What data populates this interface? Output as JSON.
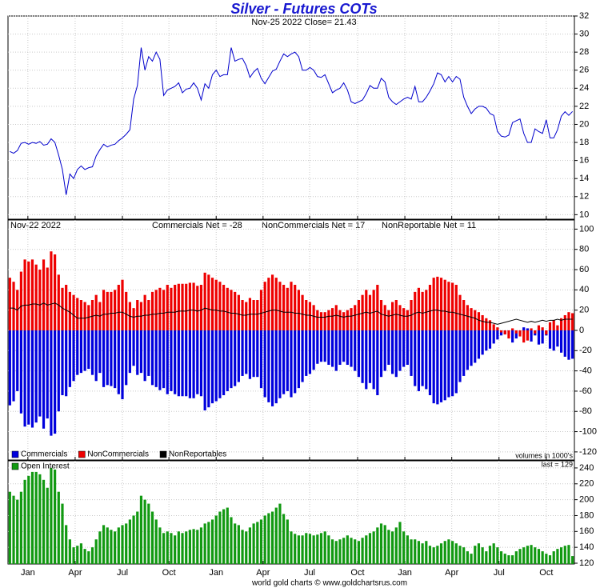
{
  "chart_data": [
    {
      "type": "line",
      "title": "Silver - Futures COTs",
      "subtitle": "Nov-25  2022   Close= 21.43",
      "xlim": [
        -0.5,
        150.5
      ],
      "ylim": [
        9.5,
        32
      ],
      "yticks": [
        10,
        12,
        14,
        16,
        18,
        20,
        22,
        24,
        26,
        28,
        30,
        32
      ],
      "grid": true,
      "color": "#0000cc",
      "values": [
        17.0,
        16.8,
        17.1,
        17.9,
        18.0,
        17.8,
        18.0,
        17.9,
        18.1,
        17.7,
        17.8,
        18.4,
        18.0,
        16.6,
        15.0,
        12.2,
        14.5,
        14.0,
        15.0,
        15.4,
        15.0,
        15.2,
        15.3,
        16.5,
        17.2,
        17.8,
        17.5,
        17.7,
        17.8,
        18.2,
        18.5,
        18.9,
        19.4,
        22.8,
        24.3,
        28.5,
        26.0,
        27.5,
        27.0,
        28.0,
        27.2,
        23.2,
        23.8,
        24.0,
        24.2,
        24.6,
        23.5,
        23.9,
        24.0,
        24.6,
        24.0,
        22.7,
        24.5,
        24.0,
        25.5,
        26.0,
        25.3,
        25.5,
        25.5,
        28.5,
        27.0,
        27.2,
        27.3,
        26.5,
        25.2,
        25.8,
        26.2,
        25.1,
        24.5,
        25.2,
        25.9,
        26.1,
        27.0,
        27.8,
        27.5,
        27.8,
        28.0,
        27.5,
        26.0,
        26.0,
        26.3,
        26.0,
        25.3,
        25.2,
        25.5,
        24.5,
        23.5,
        23.8,
        24.0,
        24.6,
        23.8,
        22.5,
        22.3,
        22.5,
        22.7,
        23.4,
        24.3,
        24.0,
        24.0,
        25.1,
        24.7,
        23.0,
        22.5,
        22.2,
        22.5,
        22.8,
        23.0,
        22.8,
        24.2,
        22.5,
        22.5,
        23.0,
        23.7,
        24.5,
        25.7,
        25.5,
        24.7,
        25.3,
        24.7,
        25.3,
        25.0,
        23.0,
        22.0,
        21.2,
        21.7,
        22.0,
        22.0,
        21.8,
        21.2,
        21.0,
        19.2,
        18.7,
        18.6,
        18.8,
        20.2,
        20.4,
        20.6,
        19.0,
        18.0,
        18.0,
        19.5,
        19.2,
        19.0,
        20.5,
        18.5,
        18.5,
        19.4,
        20.9,
        21.4,
        21.0,
        21.43
      ]
    },
    {
      "type": "bar",
      "date": "Nov-22  2022",
      "annotations": [
        "Commercials Net = -28",
        "NonCommercials Net = 17",
        "NonReportable Net = 11"
      ],
      "xlim": [
        -0.5,
        150.5
      ],
      "ylim": [
        -128,
        109
      ],
      "yticks": [
        -120,
        -100,
        -80,
        -60,
        -40,
        -20,
        0,
        20,
        40,
        60,
        80,
        100
      ],
      "grid": true,
      "series": [
        {
          "name": "Commercials",
          "color": "#0000dd",
          "values": [
            -74,
            -70,
            -60,
            -82,
            -95,
            -93,
            -96,
            -91,
            -85,
            -97,
            -87,
            -104,
            -102,
            -80,
            -64,
            -65,
            -56,
            -50,
            -44,
            -42,
            -40,
            -38,
            -44,
            -50,
            -42,
            -56,
            -54,
            -55,
            -57,
            -63,
            -68,
            -54,
            -42,
            -35,
            -44,
            -42,
            -50,
            -45,
            -54,
            -56,
            -59,
            -57,
            -63,
            -60,
            -63,
            -65,
            -65,
            -65,
            -67,
            -67,
            -63,
            -65,
            -79,
            -76,
            -72,
            -70,
            -67,
            -64,
            -60,
            -57,
            -55,
            -51,
            -45,
            -43,
            -48,
            -46,
            -46,
            -57,
            -66,
            -71,
            -75,
            -72,
            -67,
            -63,
            -60,
            -66,
            -62,
            -57,
            -51,
            -45,
            -43,
            -39,
            -33,
            -31,
            -31,
            -34,
            -36,
            -40,
            -34,
            -31,
            -34,
            -36,
            -40,
            -46,
            -52,
            -58,
            -52,
            -58,
            -64,
            -46,
            -40,
            -34,
            -43,
            -46,
            -40,
            -36,
            -34,
            -45,
            -55,
            -60,
            -55,
            -58,
            -64,
            -72,
            -73,
            -71,
            -69,
            -66,
            -65,
            -62,
            -51,
            -45,
            -39,
            -35,
            -32,
            -28,
            -24,
            -20,
            -18,
            -13,
            -9,
            -5,
            -4,
            -1,
            -12,
            -8,
            -4,
            3,
            2,
            -11,
            -5,
            -14,
            -13,
            -5,
            -18,
            -20,
            -16,
            -22,
            -26,
            -29,
            -28
          ]
        },
        {
          "name": "NonCommercials",
          "color": "#ee0000",
          "values": [
            52,
            48,
            40,
            58,
            70,
            68,
            70,
            65,
            60,
            70,
            62,
            78,
            75,
            55,
            42,
            45,
            38,
            35,
            32,
            30,
            28,
            25,
            30,
            35,
            28,
            40,
            38,
            38,
            40,
            45,
            50,
            38,
            28,
            22,
            30,
            28,
            35,
            30,
            38,
            40,
            42,
            40,
            45,
            42,
            45,
            46,
            46,
            46,
            47,
            47,
            44,
            45,
            57,
            55,
            52,
            50,
            48,
            45,
            42,
            40,
            38,
            35,
            30,
            28,
            32,
            30,
            30,
            40,
            48,
            52,
            55,
            52,
            48,
            45,
            42,
            48,
            45,
            40,
            35,
            30,
            28,
            25,
            20,
            18,
            18,
            20,
            22,
            25,
            20,
            18,
            20,
            22,
            25,
            30,
            35,
            40,
            35,
            40,
            45,
            30,
            25,
            20,
            28,
            30,
            25,
            22,
            20,
            30,
            38,
            42,
            38,
            40,
            45,
            52,
            53,
            52,
            50,
            48,
            47,
            45,
            35,
            30,
            25,
            22,
            20,
            18,
            15,
            12,
            10,
            6,
            3,
            -2,
            -4,
            -8,
            2,
            -3,
            -6,
            -12,
            -10,
            2,
            -3,
            5,
            3,
            -4,
            8,
            10,
            5,
            12,
            15,
            18,
            17
          ]
        },
        {
          "name": "NonReportables",
          "color": "#000000",
          "type": "line",
          "values": [
            22,
            22,
            20,
            24,
            25,
            25,
            26,
            26,
            25,
            27,
            25,
            26,
            27,
            25,
            22,
            20,
            18,
            15,
            12,
            12,
            12,
            13,
            14,
            15,
            14,
            16,
            16,
            17,
            17,
            18,
            18,
            16,
            14,
            13,
            14,
            14,
            15,
            15,
            16,
            16,
            17,
            17,
            18,
            18,
            18,
            19,
            19,
            19,
            20,
            20,
            19,
            20,
            22,
            21,
            20,
            20,
            19,
            19,
            18,
            17,
            17,
            16,
            15,
            15,
            16,
            16,
            16,
            17,
            18,
            19,
            20,
            20,
            19,
            18,
            18,
            18,
            17,
            17,
            16,
            15,
            15,
            14,
            13,
            13,
            13,
            14,
            14,
            15,
            14,
            13,
            14,
            14,
            15,
            16,
            17,
            18,
            17,
            18,
            19,
            16,
            15,
            14,
            15,
            16,
            15,
            14,
            14,
            15,
            17,
            18,
            17,
            18,
            19,
            20,
            20,
            19,
            19,
            18,
            18,
            17,
            16,
            15,
            14,
            13,
            12,
            10,
            9,
            8,
            8,
            7,
            6,
            7,
            8,
            9,
            10,
            11,
            10,
            9,
            8,
            9,
            8,
            9,
            10,
            9,
            10,
            10,
            11,
            10,
            11,
            11,
            11
          ]
        }
      ]
    },
    {
      "type": "bar",
      "annotations": [
        "volumes in 1000's",
        "last = 129"
      ],
      "xlim": [
        -0.5,
        150.5
      ],
      "ylim": [
        119,
        249
      ],
      "yticks": [
        120,
        140,
        160,
        180,
        200,
        220,
        240
      ],
      "grid": true,
      "xticks": [
        {
          "value": 4.8,
          "label": "Jan"
        },
        {
          "value": 17.4,
          "label": "Apr"
        },
        {
          "value": 30,
          "label": "Jul"
        },
        {
          "value": 42.4,
          "label": "Oct"
        },
        {
          "value": 55,
          "label": "Jan"
        },
        {
          "value": 67.5,
          "label": "Apr"
        },
        {
          "value": 79.9,
          "label": "Jul"
        },
        {
          "value": 92.7,
          "label": "Oct"
        },
        {
          "value": 105.3,
          "label": "Jan"
        },
        {
          "value": 117.8,
          "label": "Apr"
        },
        {
          "value": 130.4,
          "label": "Jul"
        },
        {
          "value": 143,
          "label": "Oct"
        }
      ],
      "series": [
        {
          "name": "Open Interest",
          "color": "#119911",
          "values": [
            210,
            205,
            200,
            210,
            225,
            230,
            235,
            235,
            232,
            225,
            215,
            240,
            238,
            210,
            195,
            168,
            150,
            140,
            142,
            145,
            138,
            135,
            140,
            150,
            160,
            168,
            165,
            162,
            160,
            165,
            168,
            170,
            175,
            180,
            185,
            205,
            200,
            195,
            185,
            175,
            165,
            158,
            160,
            158,
            155,
            160,
            158,
            160,
            162,
            163,
            162,
            165,
            170,
            172,
            175,
            180,
            185,
            188,
            190,
            178,
            170,
            168,
            162,
            160,
            165,
            170,
            172,
            175,
            180,
            183,
            185,
            190,
            195,
            182,
            175,
            160,
            157,
            155,
            155,
            158,
            157,
            155,
            156,
            158,
            160,
            155,
            150,
            148,
            150,
            152,
            155,
            152,
            150,
            148,
            152,
            155,
            158,
            160,
            165,
            170,
            168,
            162,
            160,
            165,
            172,
            160,
            155,
            150,
            150,
            148,
            145,
            148,
            142,
            140,
            142,
            145,
            148,
            150,
            148,
            145,
            142,
            140,
            135,
            132,
            142,
            145,
            140,
            135,
            142,
            145,
            140,
            135,
            132,
            130,
            130,
            135,
            138,
            140,
            142,
            143,
            140,
            138,
            135,
            132,
            130,
            135,
            138,
            140,
            142,
            143,
            129
          ]
        }
      ]
    }
  ],
  "footer": "world gold charts © www.goldchartsrus.com"
}
